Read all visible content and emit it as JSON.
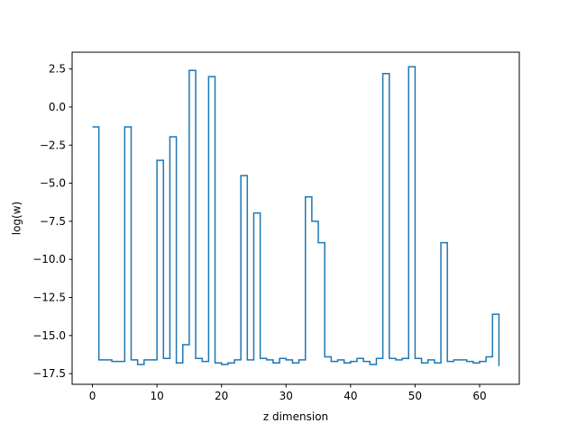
{
  "chart_data": {
    "type": "line",
    "drawstyle": "steps-post",
    "title": "",
    "xlabel": "z dimension",
    "ylabel": "log(w)",
    "xlim": [
      -3.15,
      66.15
    ],
    "ylim": [
      -18.2,
      3.6
    ],
    "xticks": [
      0,
      10,
      20,
      30,
      40,
      50,
      60
    ],
    "xtick_labels": [
      "0",
      "10",
      "20",
      "30",
      "40",
      "50",
      "60"
    ],
    "yticks": [
      2.5,
      0.0,
      -2.5,
      -5.0,
      -7.5,
      -10.0,
      -12.5,
      -15.0,
      -17.5
    ],
    "ytick_labels": [
      "2.5",
      "0.0",
      "−2.5",
      "−5.0",
      "−7.5",
      "−10.0",
      "−12.5",
      "−15.0",
      "−17.5"
    ],
    "grid": false,
    "legend": "none",
    "color": "#1f77b4",
    "series": [
      {
        "x": [
          0,
          1,
          2,
          3,
          4,
          5,
          6,
          7,
          8,
          9,
          10,
          11,
          12,
          13,
          14,
          15,
          16,
          17,
          18,
          19,
          20,
          21,
          22,
          23,
          24,
          25,
          26,
          27,
          28,
          29,
          30,
          31,
          32,
          33,
          34,
          35,
          36,
          37,
          38,
          39,
          40,
          41,
          42,
          43,
          44,
          45,
          46,
          47,
          48,
          49,
          50,
          51,
          52,
          53,
          54,
          55,
          56,
          57,
          58,
          59,
          60,
          61,
          62,
          63
        ],
        "values": [
          -1.3,
          -16.6,
          -16.6,
          -16.7,
          -16.7,
          -1.3,
          -16.6,
          -16.9,
          -16.6,
          -16.6,
          -3.5,
          -16.5,
          -1.95,
          -16.8,
          -15.6,
          2.4,
          -16.5,
          -16.7,
          2.0,
          -16.8,
          -16.9,
          -16.8,
          -16.6,
          -4.5,
          -16.6,
          -6.95,
          -16.5,
          -16.6,
          -16.8,
          -16.5,
          -16.6,
          -16.8,
          -16.6,
          -5.9,
          -7.5,
          -8.9,
          -16.4,
          -16.7,
          -16.6,
          -16.8,
          -16.7,
          -16.5,
          -16.7,
          -16.9,
          -16.5,
          2.2,
          -16.5,
          -16.6,
          -16.5,
          2.65,
          -16.5,
          -16.8,
          -16.6,
          -16.8,
          -8.9,
          -16.7,
          -16.6,
          -16.6,
          -16.7,
          -16.8,
          -16.7,
          -16.4,
          -13.6,
          -17.0
        ]
      }
    ]
  }
}
